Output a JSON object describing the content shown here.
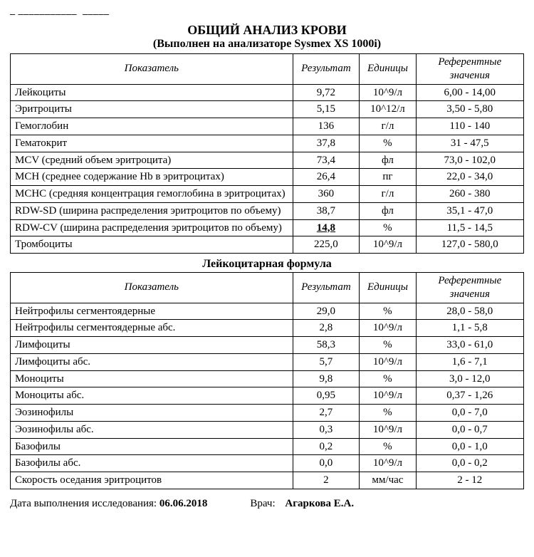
{
  "top_crop": "_ ___________  _____",
  "title_main": "ОБЩИЙ АНАЛИЗ КРОВИ",
  "title_sub": "(Выполнен на анализаторе Sysmex XS 1000i)",
  "headers": {
    "param": "Показатель",
    "result": "Результат",
    "unit": "Единицы",
    "ref": "Референтные значения"
  },
  "cbc_rows": [
    {
      "name": "Лейкоциты",
      "value": "9,72",
      "unit": "10^9/л",
      "ref": "6,00 - 14,00",
      "abnormal": false
    },
    {
      "name": "Эритроциты",
      "value": "5,15",
      "unit": "10^12/л",
      "ref": "3,50 - 5,80",
      "abnormal": false
    },
    {
      "name": "Гемоглобин",
      "value": "136",
      "unit": "г/л",
      "ref": "110 - 140",
      "abnormal": false
    },
    {
      "name": "Гематокрит",
      "value": "37,8",
      "unit": "%",
      "ref": "31 - 47,5",
      "abnormal": false
    },
    {
      "name": "MCV (средний объем эритроцита)",
      "value": "73,4",
      "unit": "фл",
      "ref": "73,0 - 102,0",
      "abnormal": false
    },
    {
      "name": "MCH (среднее содержание Hb в эритроцитах)",
      "value": "26,4",
      "unit": "пг",
      "ref": "22,0 - 34,0",
      "abnormal": false
    },
    {
      "name": "MCHC (средняя концентрация гемоглобина в эритроцитах)",
      "value": "360",
      "unit": "г/л",
      "ref": "260 - 380",
      "abnormal": false
    },
    {
      "name": "RDW-SD (ширина распределения эритроцитов по объему)",
      "value": "38,7",
      "unit": "фл",
      "ref": "35,1 - 47,0",
      "abnormal": false
    },
    {
      "name": "RDW-CV (ширина распределения эритроцитов по объему)",
      "value": "14,8",
      "unit": "%",
      "ref": "11,5 - 14,5",
      "abnormal": true
    },
    {
      "name": "Тромбоциты",
      "value": "225,0",
      "unit": "10^9/л",
      "ref": "127,0 - 580,0",
      "abnormal": false
    }
  ],
  "diff_title": "Лейкоцитарная формула",
  "diff_rows": [
    {
      "name": "Нейтрофилы сегментоядерные",
      "value": "29,0",
      "unit": "%",
      "ref": "28,0 - 58,0",
      "abnormal": false
    },
    {
      "name": "Нейтрофилы сегментоядерные абс.",
      "value": "2,8",
      "unit": "10^9/л",
      "ref": "1,1 - 5,8",
      "abnormal": false
    },
    {
      "name": "Лимфоциты",
      "value": "58,3",
      "unit": "%",
      "ref": "33,0 - 61,0",
      "abnormal": false
    },
    {
      "name": "Лимфоциты абс.",
      "value": "5,7",
      "unit": "10^9/л",
      "ref": "1,6 - 7,1",
      "abnormal": false
    },
    {
      "name": "Моноциты",
      "value": "9,8",
      "unit": "%",
      "ref": "3,0 - 12,0",
      "abnormal": false
    },
    {
      "name": "Моноциты абс.",
      "value": "0,95",
      "unit": "10^9/л",
      "ref": "0,37 - 1,26",
      "abnormal": false
    },
    {
      "name": "Эозинофилы",
      "value": "2,7",
      "unit": "%",
      "ref": "0,0 - 7,0",
      "abnormal": false
    },
    {
      "name": "Эозинофилы абс.",
      "value": "0,3",
      "unit": "10^9/л",
      "ref": "0,0 - 0,7",
      "abnormal": false
    },
    {
      "name": "Базофилы",
      "value": "0,2",
      "unit": "%",
      "ref": "0,0 - 1,0",
      "abnormal": false
    },
    {
      "name": "Базофилы абс.",
      "value": "0,0",
      "unit": "10^9/л",
      "ref": "0,0 - 0,2",
      "abnormal": false
    },
    {
      "name": "Скорость оседания эритроцитов",
      "value": "2",
      "unit": "мм/час",
      "ref": "2 - 12",
      "abnormal": false
    }
  ],
  "footer": {
    "date_label": "Дата выполнения исследования: ",
    "date_value": "06.06.2018",
    "doctor_label": "Врач:",
    "doctor_value": "Агаркова Е.А."
  },
  "style": {
    "border_color": "#000000",
    "text_color": "#000000",
    "bg_color": "#ffffff",
    "font_family": "Times New Roman",
    "title_fontsize_pt": 14,
    "body_fontsize_pt": 11,
    "col_widths_pct": [
      55,
      13,
      11,
      21
    ]
  }
}
